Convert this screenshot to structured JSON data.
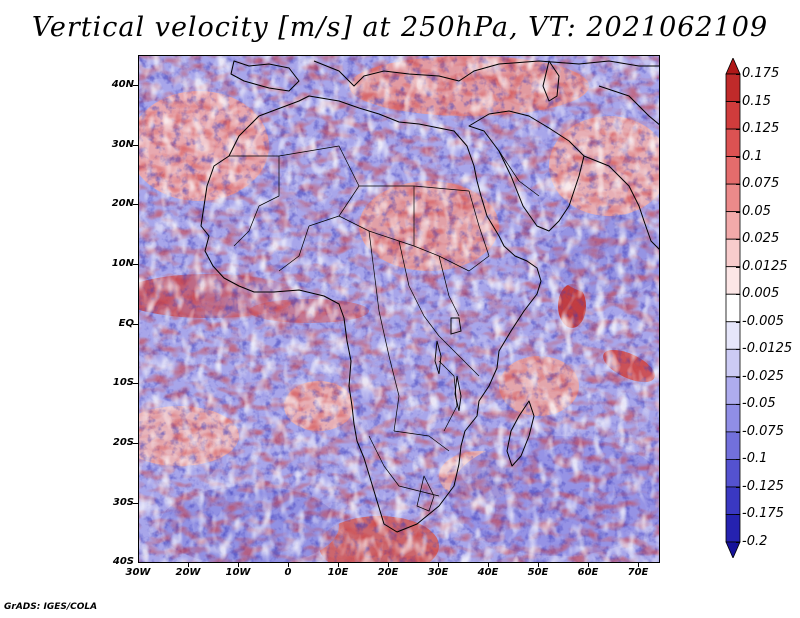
{
  "title": "Vertical velocity [m/s] at 250hPa, VT: 2021062109",
  "credit": "GrADS: IGES/COLA",
  "map": {
    "projection": "lat-lon",
    "lon_range": [
      -30,
      75
    ],
    "lat_range": [
      -40,
      45
    ],
    "variable": "vertical velocity",
    "units": "m/s",
    "level": "250hPa",
    "valid_time": "2021062109",
    "lat_labels": [
      "40N",
      "30N",
      "20N",
      "10N",
      "EQ",
      "10S",
      "20S",
      "30S",
      "40S"
    ],
    "lon_labels": [
      "30W",
      "20W",
      "10W",
      "0",
      "10E",
      "20E",
      "30E",
      "40E",
      "50E",
      "60E",
      "70E"
    ]
  },
  "colorbar": {
    "labels": [
      "0.175",
      "0.15",
      "0.125",
      "0.1",
      "0.075",
      "0.05",
      "0.025",
      "0.0125",
      "0.005",
      "-0.005",
      "-0.0125",
      "-0.025",
      "-0.05",
      "-0.075",
      "-0.1",
      "-0.125",
      "-0.175",
      "-0.2"
    ],
    "colors": [
      "#b01818",
      "#c02a2a",
      "#d03c3c",
      "#dc5252",
      "#e46c6c",
      "#ec8a8a",
      "#f2aaaa",
      "#f8cccc",
      "#fce6e6",
      "#ffffff",
      "#e6e6fa",
      "#cccbf4",
      "#aeacee",
      "#908ee6",
      "#7270dc",
      "#5452d0",
      "#3a38c2",
      "#2522b0",
      "#16129a"
    ]
  },
  "colors": {
    "positive": "#d43a3a",
    "negative": "#4a48c8",
    "neutral": "#ffffff",
    "coast": "#000000"
  }
}
